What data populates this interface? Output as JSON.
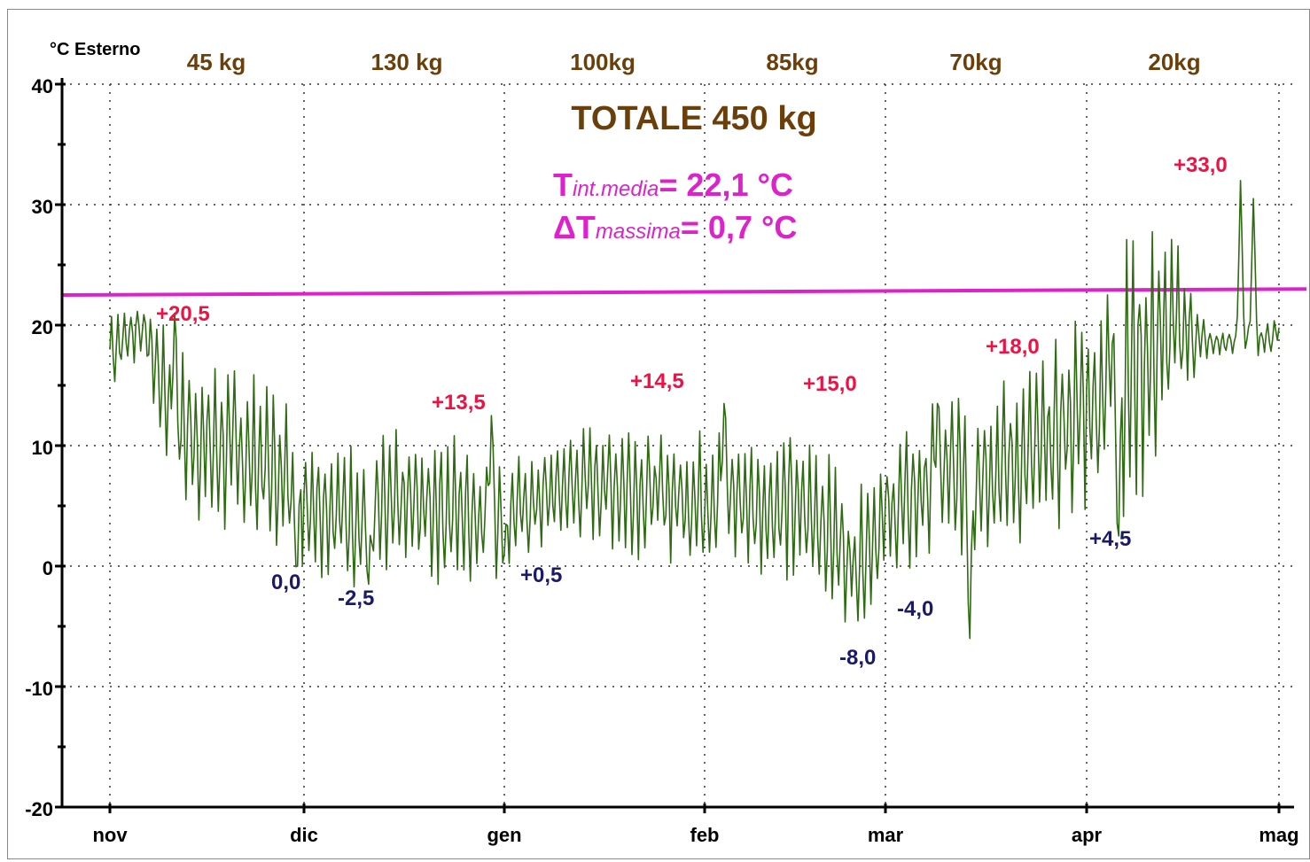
{
  "chart_data": {
    "type": "line",
    "ylabel": "°C Esterno",
    "ylim": [
      -20,
      40
    ],
    "yticks": [
      "-20",
      "-10",
      "0",
      "10",
      "20",
      "30",
      "40"
    ],
    "months": [
      "nov",
      "dic",
      "gen",
      "feb",
      "mar",
      "apr",
      "mag"
    ],
    "grid": true,
    "monthly_kg": [
      "45 kg",
      "130 kg",
      "100kg",
      "85kg",
      "70kg",
      "20kg"
    ],
    "totale": "TOTALE 450 kg",
    "t_int_media": {
      "main": "T",
      "sub": "int.media",
      "value": "= 22,1 °C"
    },
    "delta_t_massima": {
      "main": "ΔT",
      "sub": "massima",
      "value": "= 0,7 °C"
    },
    "internal_temperature_line": {
      "start": 22.5,
      "end": 23.0,
      "color": "#dd22cc"
    },
    "series_color": "#2e6b12",
    "max_annotations": [
      "+20,5",
      "+13,5",
      "+14,5",
      "+15,0",
      "+18,0",
      "+33,0"
    ],
    "min_annotations": [
      "0,0",
      "-2,5",
      "+0,5",
      "-8,0",
      "-4,0",
      "+4,5"
    ],
    "trend": {
      "day": [
        0,
        5,
        10,
        15,
        20,
        25,
        30,
        35,
        40,
        45,
        50,
        55,
        60,
        65,
        70,
        75,
        80,
        85,
        90,
        95,
        100,
        105,
        110,
        115,
        120,
        125,
        130,
        135,
        140,
        145,
        150,
        155,
        160,
        165,
        170,
        175,
        180,
        181
      ],
      "mean": [
        18,
        20,
        12,
        10,
        9.5,
        8,
        6,
        4.5,
        4,
        5,
        5,
        4.5,
        4,
        5,
        6.5,
        7,
        6.5,
        6,
        5.5,
        6,
        5,
        5,
        4,
        0,
        4,
        6,
        7.5,
        8,
        8.5,
        10,
        13,
        15,
        17,
        20,
        18.5,
        18.5,
        19,
        20
      ],
      "amplitude": [
        2.5,
        2,
        4.5,
        5,
        5,
        5,
        4.5,
        4,
        4.5,
        4.5,
        4.5,
        4.5,
        3.5,
        3,
        3,
        3.5,
        4,
        4,
        4,
        4,
        4,
        4.5,
        4.5,
        4,
        4,
        4.5,
        5,
        5,
        5,
        5.5,
        6,
        8,
        8,
        5,
        0.8,
        0.8,
        1,
        1
      ]
    },
    "extremes": [
      {
        "day": 10,
        "value": 21
      },
      {
        "day": 29,
        "value": 0
      },
      {
        "day": 40,
        "value": -1.5
      },
      {
        "day": 59,
        "value": 12.5
      },
      {
        "day": 61,
        "value": 1
      },
      {
        "day": 95,
        "value": 13.5
      },
      {
        "day": 128,
        "value": 13.5
      },
      {
        "day": 133,
        "value": -6
      },
      {
        "day": 155,
        "value": 18.5
      },
      {
        "day": 156,
        "value": 2.5
      },
      {
        "day": 175,
        "value": 32
      },
      {
        "day": 177,
        "value": 30.5
      }
    ]
  }
}
